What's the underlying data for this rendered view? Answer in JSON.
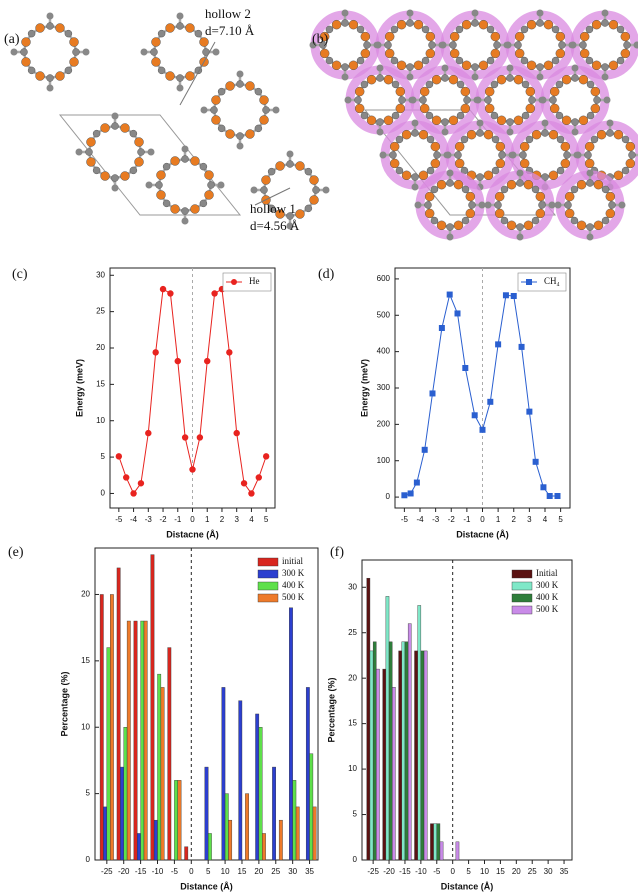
{
  "structures": [
    {
      "label": "(a)",
      "annotations": [
        "hollow 2",
        "d=7.10 Å",
        "hollow 1",
        "d=4.56 Å"
      ]
    },
    {
      "label": "(b)"
    }
  ],
  "chart_data": [
    {
      "type": "line",
      "panel_label": "(c)",
      "xlabel": "Distacne (Å)",
      "ylabel": "Energy (meV)",
      "x": [
        -5,
        -4.5,
        -4,
        -3.5,
        -3,
        -2.5,
        -2,
        -1.5,
        -1,
        -0.5,
        0,
        0.5,
        1,
        1.5,
        2,
        2.5,
        3,
        3.5,
        4,
        4.5,
        5
      ],
      "series": [
        {
          "name": "He",
          "color": "#e8231f",
          "marker": "circle",
          "values": [
            5.1,
            2.2,
            0,
            1.4,
            8.3,
            19.4,
            28.1,
            27.5,
            18.2,
            7.7,
            3.3,
            7.7,
            18.2,
            27.5,
            28.1,
            19.4,
            8.3,
            1.4,
            0,
            2.2,
            5.1
          ]
        }
      ],
      "xlim": [
        -5.6,
        5.6
      ],
      "xticks": [
        -5,
        -4,
        -3,
        -2,
        -1,
        0,
        1,
        2,
        3,
        4,
        5
      ],
      "ylim": [
        -2,
        31
      ],
      "yticks": [
        0,
        5,
        10,
        15,
        20,
        25,
        30
      ],
      "reference_x": 0,
      "legend": "upper right"
    },
    {
      "type": "line",
      "panel_label": "(d)",
      "xlabel": "Distacne (Å)",
      "ylabel": "Energy (meV)",
      "x": [
        -5,
        -4.6,
        -4.2,
        -3.7,
        -3.2,
        -2.6,
        -2.1,
        -1.6,
        -1.1,
        -0.5,
        0,
        0.5,
        1,
        1.5,
        2,
        2.5,
        3,
        3.4,
        3.9,
        4.3,
        4.8
      ],
      "series": [
        {
          "name": "CH₄",
          "color": "#2a5fd0",
          "marker": "square",
          "values": [
            5,
            10,
            40,
            130,
            285,
            465,
            557,
            505,
            355,
            225,
            185,
            262,
            420,
            555,
            553,
            413,
            235,
            97,
            27,
            3,
            3
          ]
        }
      ],
      "xlim": [
        -5.6,
        5.6
      ],
      "xticks": [
        -5,
        -4,
        -3,
        -2,
        -1,
        0,
        1,
        2,
        3,
        4,
        5
      ],
      "ylim": [
        -30,
        630
      ],
      "yticks": [
        0,
        100,
        200,
        300,
        400,
        500,
        600
      ],
      "reference_x": 0,
      "legend": "upper right"
    },
    {
      "type": "bar",
      "panel_label": "(e)",
      "xlabel": "Distance (Å)",
      "ylabel": "Percentage (%)",
      "x": [
        -25,
        -20,
        -15,
        -10,
        -5,
        0,
        5,
        10,
        15,
        20,
        25,
        30,
        35
      ],
      "series": [
        {
          "name": "initial",
          "color": "#d8261e",
          "values": [
            20,
            22,
            18,
            23,
            16,
            1,
            0,
            0,
            0,
            0,
            0,
            0,
            0
          ]
        },
        {
          "name": "300 K",
          "color": "#2c3fcf",
          "values": [
            4,
            7,
            2,
            3,
            0,
            0,
            7,
            13,
            12,
            11,
            7,
            19,
            13
          ]
        },
        {
          "name": "400 K",
          "color": "#5ee04a",
          "values": [
            16,
            10,
            18,
            14,
            6,
            0,
            2,
            5,
            0,
            10,
            0,
            6,
            8
          ]
        },
        {
          "name": "500 K",
          "color": "#ee7a2a",
          "values": [
            20,
            18,
            18,
            13,
            6,
            0,
            0,
            3,
            5,
            2,
            3,
            4,
            4
          ]
        }
      ],
      "xlim": [
        -28.5,
        37.5
      ],
      "xticks": [
        -25,
        -20,
        -15,
        -10,
        -5,
        0,
        5,
        10,
        15,
        20,
        25,
        30,
        35
      ],
      "ylim": [
        0,
        23.5
      ],
      "yticks": [
        0,
        5,
        10,
        15,
        20
      ],
      "reference_x": 0,
      "legend": "upper right"
    },
    {
      "type": "bar",
      "panel_label": "(f)",
      "xlabel": "Distance (Å)",
      "ylabel": "Percentage (%)",
      "x": [
        -25,
        -20,
        -15,
        -10,
        -5,
        0,
        5,
        10,
        15,
        20,
        25,
        30,
        35
      ],
      "series": [
        {
          "name": "Initial",
          "color": "#5a1212",
          "values": [
            31,
            21,
            23,
            23,
            4,
            0,
            0,
            0,
            0,
            0,
            0,
            0,
            0
          ]
        },
        {
          "name": "300 K",
          "color": "#7fe8c8",
          "values": [
            23,
            29,
            24,
            28,
            4,
            0,
            0,
            0,
            0,
            0,
            0,
            0,
            0
          ]
        },
        {
          "name": "400 K",
          "color": "#2e7d3a",
          "values": [
            24,
            24,
            24,
            23,
            4,
            0,
            0,
            0,
            0,
            0,
            0,
            0,
            0
          ]
        },
        {
          "name": "500 K",
          "color": "#c98be8",
          "values": [
            21,
            19,
            26,
            23,
            2,
            2,
            0,
            0,
            0,
            0,
            0,
            0,
            0
          ]
        }
      ],
      "xlim": [
        -28.5,
        37.5
      ],
      "xticks": [
        -25,
        -20,
        -15,
        -10,
        -5,
        0,
        5,
        10,
        15,
        20,
        25,
        30,
        35
      ],
      "ylim": [
        0,
        33
      ],
      "yticks": [
        0,
        5,
        10,
        15,
        20,
        25,
        30
      ],
      "reference_x": 0,
      "legend": "upper right"
    }
  ]
}
